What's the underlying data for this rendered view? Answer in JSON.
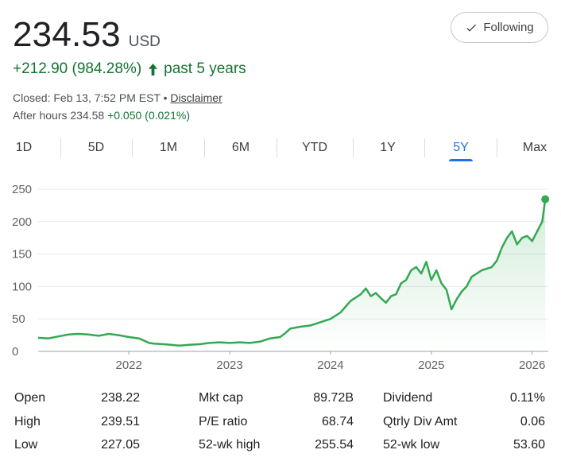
{
  "quote": {
    "price": "234.53",
    "currency": "USD",
    "change": "+212.90 (984.28%)",
    "period": "past 5 years",
    "closed": "Closed: Feb 13, 7:52 PM EST",
    "bullet": " • ",
    "disclaimer": "Disclaimer",
    "after_hours_label": "After hours 234.58",
    "after_hours_change": "+0.050 (0.021%)"
  },
  "follow_button": {
    "label": "Following",
    "icon": "check-icon"
  },
  "change_icon": "arrow-up-icon",
  "colors": {
    "positive": "#137333",
    "line": "#34a853",
    "accent": "#1a73e8"
  },
  "ranges": [
    "1D",
    "5D",
    "1M",
    "6M",
    "YTD",
    "1Y",
    "5Y",
    "Max"
  ],
  "active_range": "5Y",
  "chart_data": {
    "type": "line",
    "x_ticks": [
      "2022",
      "2023",
      "2024",
      "2025",
      "2026"
    ],
    "y_ticks": [
      0,
      50,
      100,
      150,
      200,
      250
    ],
    "ylim": [
      0,
      250
    ],
    "xlim": [
      2021.1,
      2026.16
    ],
    "grid": true,
    "series": [
      {
        "x": [
          2021.1,
          2021.2,
          2021.3,
          2021.4,
          2021.5,
          2021.6,
          2021.7,
          2021.8,
          2021.9,
          2022.0,
          2022.1,
          2022.2,
          2022.25,
          2022.35,
          2022.5,
          2022.6,
          2022.7,
          2022.8,
          2022.9,
          2023.0,
          2023.1,
          2023.2,
          2023.3,
          2023.4,
          2023.5,
          2023.55,
          2023.6,
          2023.7,
          2023.8,
          2023.9,
          2024.0,
          2024.1,
          2024.2,
          2024.3,
          2024.35,
          2024.4,
          2024.45,
          2024.5,
          2024.55,
          2024.6,
          2024.65,
          2024.7,
          2024.75,
          2024.8,
          2024.85,
          2024.9,
          2024.95,
          2025.0,
          2025.05,
          2025.1,
          2025.15,
          2025.2,
          2025.25,
          2025.3,
          2025.35,
          2025.4,
          2025.5,
          2025.6,
          2025.65,
          2025.7,
          2025.75,
          2025.8,
          2025.85,
          2025.9,
          2025.95,
          2026.0,
          2026.05,
          2026.1,
          2026.13
        ],
        "y": [
          21,
          20,
          23,
          26,
          27,
          26,
          24,
          27,
          25,
          22,
          20,
          13,
          12,
          11,
          9,
          10,
          11,
          13,
          14,
          13,
          14,
          13,
          15,
          20,
          22,
          28,
          35,
          38,
          40,
          45,
          50,
          60,
          78,
          88,
          97,
          85,
          90,
          82,
          75,
          85,
          88,
          105,
          110,
          125,
          130,
          120,
          138,
          110,
          125,
          105,
          95,
          65,
          80,
          92,
          100,
          115,
          125,
          130,
          140,
          160,
          175,
          185,
          165,
          175,
          178,
          170,
          185,
          200,
          234.53
        ]
      }
    ]
  },
  "stats": [
    [
      {
        "label": "Open",
        "value": "238.22"
      },
      {
        "label": "High",
        "value": "239.51"
      },
      {
        "label": "Low",
        "value": "227.05"
      }
    ],
    [
      {
        "label": "Mkt cap",
        "value": "89.72B"
      },
      {
        "label": "P/E ratio",
        "value": "68.74"
      },
      {
        "label": "52-wk high",
        "value": "255.54"
      }
    ],
    [
      {
        "label": "Dividend",
        "value": "0.11%"
      },
      {
        "label": "Qtrly Div Amt",
        "value": "0.06"
      },
      {
        "label": "52-wk low",
        "value": "53.60"
      }
    ]
  ]
}
